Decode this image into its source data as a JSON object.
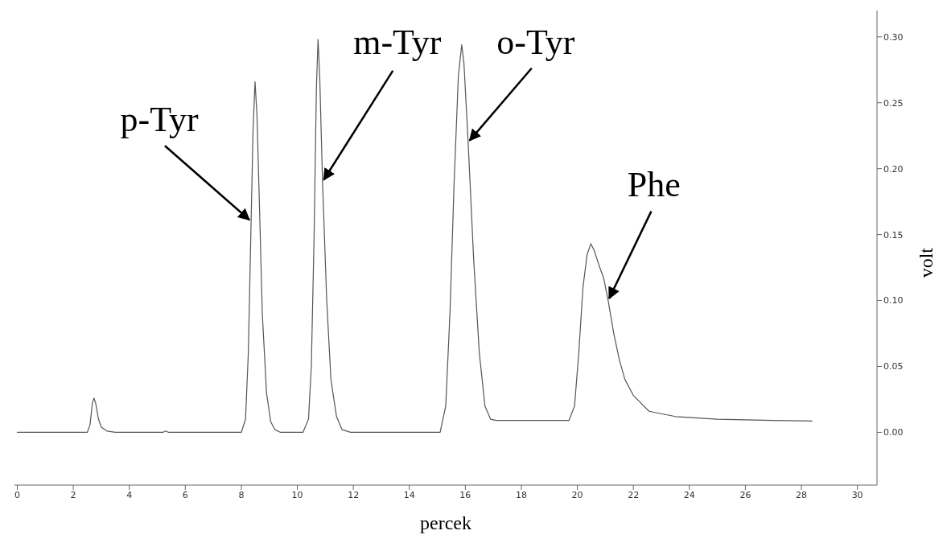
{
  "chart_data": {
    "type": "line",
    "xlabel": "percek",
    "ylabel": "volt",
    "x": [
      0,
      1,
      2,
      2.5,
      2.6,
      2.68,
      2.74,
      2.8,
      2.9,
      3.0,
      3.2,
      3.5,
      5.2,
      5.3,
      5.4,
      8.0,
      8.15,
      8.25,
      8.35,
      8.42,
      8.49,
      8.56,
      8.65,
      8.75,
      8.9,
      9.05,
      9.2,
      9.4,
      10.2,
      10.4,
      10.5,
      10.6,
      10.68,
      10.74,
      10.8,
      10.9,
      11.05,
      11.2,
      11.4,
      11.6,
      11.9,
      15.1,
      15.3,
      15.45,
      15.6,
      15.75,
      15.87,
      15.95,
      16.1,
      16.3,
      16.5,
      16.7,
      16.9,
      17.1,
      19.7,
      19.9,
      20.05,
      20.2,
      20.35,
      20.48,
      20.6,
      20.8,
      20.94,
      21.1,
      21.3,
      21.5,
      21.7,
      22.0,
      22.56,
      23.5,
      25,
      27,
      28.38
    ],
    "values": [
      0,
      0,
      0,
      0,
      0.006,
      0.022,
      0.026,
      0.022,
      0.01,
      0.004,
      0.001,
      0,
      0,
      0.001,
      0,
      0,
      0.01,
      0.06,
      0.16,
      0.23,
      0.266,
      0.24,
      0.17,
      0.09,
      0.03,
      0.008,
      0.002,
      0,
      0,
      0.01,
      0.05,
      0.15,
      0.26,
      0.298,
      0.27,
      0.19,
      0.1,
      0.04,
      0.012,
      0.002,
      0,
      0,
      0.02,
      0.09,
      0.19,
      0.27,
      0.294,
      0.28,
      0.22,
      0.13,
      0.06,
      0.02,
      0.01,
      0.009,
      0.009,
      0.02,
      0.06,
      0.11,
      0.135,
      0.143,
      0.138,
      0.125,
      0.117,
      0.1,
      0.075,
      0.055,
      0.04,
      0.028,
      0.016,
      0.012,
      0.01,
      0.009,
      0.0086
    ],
    "color": "#555555",
    "marker": "none",
    "xlim": [
      -0.1,
      30.7
    ],
    "xticks": [
      0,
      2,
      4,
      6,
      8,
      10,
      12,
      14,
      16,
      18,
      20,
      22,
      24,
      26,
      28,
      30
    ],
    "ylim": [
      -0.04,
      0.32
    ],
    "yticks": [
      {
        "value": 0,
        "label": "0.00"
      },
      {
        "value": 0.05,
        "label": "0.05"
      },
      {
        "value": 0.1,
        "label": "0.10"
      },
      {
        "value": 0.15,
        "label": "0.15"
      },
      {
        "value": 0.2,
        "label": "0.20"
      },
      {
        "value": 0.25,
        "label": "0.25"
      },
      {
        "value": 0.3,
        "label": "0.30"
      }
    ],
    "annotations": [
      {
        "text": "p-Tyr",
        "x": 8.35,
        "y": 0.16
      },
      {
        "text": "m-Tyr",
        "x": 10.9,
        "y": 0.19
      },
      {
        "text": "o-Tyr",
        "x": 16.1,
        "y": 0.22
      },
      {
        "text": "Phe",
        "x": 21.1,
        "y": 0.1
      }
    ]
  }
}
